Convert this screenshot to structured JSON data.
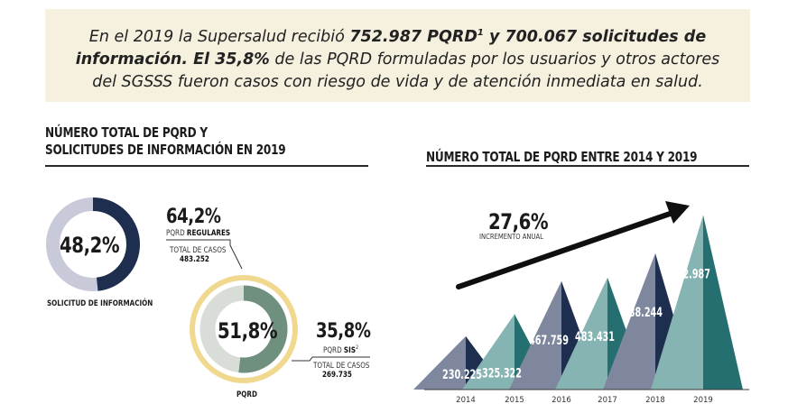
{
  "banner": {
    "line1_a": "En el 2019 la Supersalud recibió ",
    "line1_b": "752.987 PQRD",
    "line1_sup": "1",
    "line1_c": " y 700.067 solicitudes  de",
    "line2_a": "información. El 35,8%",
    "line2_b": " de las PQRD formuladas por los usuarios y otros actores",
    "line3": "del SGSSS  fueron casos con riesgo de vida y de atención inmediata en salud."
  },
  "left": {
    "title_line1": "NÚMERO TOTAL DE PQRD Y",
    "title_line2": "SOLICITUDES DE INFORMACIÓN EN 2019",
    "donut1": {
      "value_label": "48,2%",
      "caption": "SOLICITUD DE INFORMACIÓN",
      "fraction": 0.482
    },
    "regulares": {
      "pct": "64,2%",
      "name_a": "PQRD ",
      "name_b": "REGULARES",
      "total_label": "TOTAL DE CASOS",
      "total_value": "483.252",
      "fraction": 0.642
    },
    "donut2": {
      "value_label": "51,8%",
      "caption": "PQRD",
      "fraction": 0.518
    },
    "sis": {
      "pct": "35,8%",
      "name_a": "PQRD ",
      "name_b": "SIS",
      "name_sup": "2",
      "total_label": "TOTAL DE CASOS",
      "total_value": "269.735",
      "fraction": 0.358
    }
  },
  "colors": {
    "navy": "#1e2e4f",
    "lavender": "#c9cad9",
    "sage": "#6f8f7f",
    "light_gray": "#d8ddd8",
    "gold": "#f0d88f",
    "slate": "#7e879e",
    "teal": "#86b4b2",
    "dark_teal": "#266f71"
  },
  "chart_data": {
    "type": "area",
    "title": "NÚMERO TOTAL DE PQRD ENTRE 2014 Y 2019",
    "categories": [
      "2014",
      "2015",
      "2016",
      "2017",
      "2018",
      "2019"
    ],
    "values": [
      230225,
      325322,
      467759,
      483431,
      588244,
      752987
    ],
    "value_labels": [
      "230.225",
      "325.322",
      "467.759",
      "483.431",
      "588.244",
      "752.987"
    ],
    "annotation": {
      "value": "27,6%",
      "label": "INCREMENTO ANUAL"
    }
  }
}
